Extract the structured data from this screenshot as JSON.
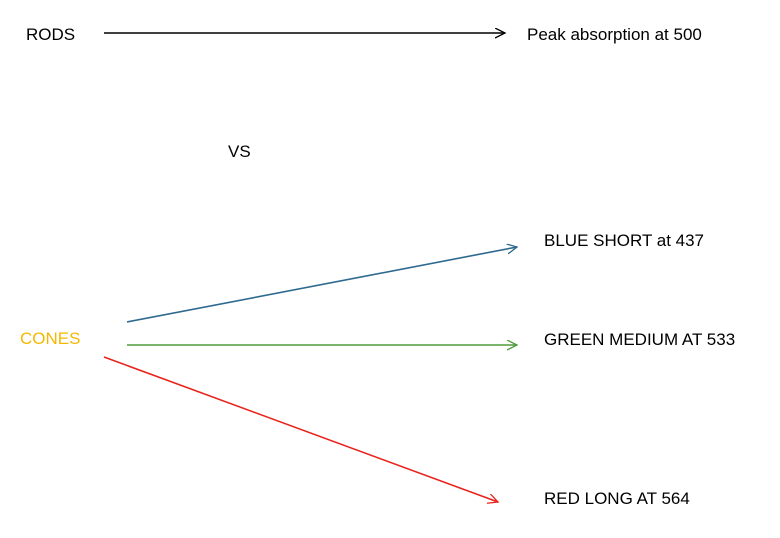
{
  "diagram": {
    "rods": {
      "label": "RODS",
      "target": "Peak absorption at 500",
      "arrow_color": "#000000"
    },
    "vs": "VS",
    "cones": {
      "label": "CONES",
      "label_color": "#f5b800",
      "branches": [
        {
          "label": "BLUE SHORT at 437",
          "arrow_color": "#2e6a8e"
        },
        {
          "label": "GREEN MEDIUM AT 533",
          "arrow_color": "#4f9a3a"
        },
        {
          "label": "RED LONG AT 564",
          "arrow_color": "#e8231b"
        }
      ]
    }
  }
}
